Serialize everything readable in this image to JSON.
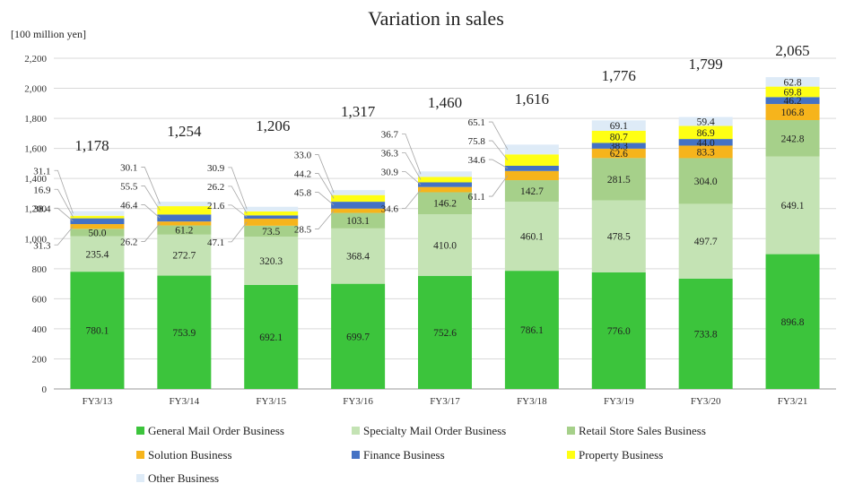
{
  "chart_data": {
    "type": "bar",
    "stacked": true,
    "title": "Variation in sales",
    "unit_label": "[100 million yen]",
    "ylim": [
      0,
      2200
    ],
    "yticks": [
      "0",
      "200",
      "400",
      "600",
      "800",
      "1,000",
      "1,200",
      "1,400",
      "1,600",
      "1,800",
      "2,000",
      "2,200"
    ],
    "grid": true,
    "legend_position": "bottom",
    "categories": [
      "FY3/13",
      "FY3/14",
      "FY3/15",
      "FY3/16",
      "FY3/17",
      "FY3/18",
      "FY3/19",
      "FY3/20",
      "FY3/21"
    ],
    "totals": [
      "1,178",
      "1,254",
      "1,206",
      "1,317",
      "1,460",
      "1,616",
      "1,776",
      "1,799",
      "2,065"
    ],
    "series": [
      {
        "name": "General Mail Order Business",
        "color": "#3cc43c",
        "values": [
          780.1,
          753.9,
          692.1,
          699.7,
          752.6,
          786.1,
          776.0,
          733.8,
          896.8
        ],
        "labels": [
          "780.1",
          "753.9",
          "692.1",
          "699.7",
          "752.6",
          "786.1",
          "776.0",
          "733.8",
          "896.8"
        ]
      },
      {
        "name": "Specialty Mail Order Business",
        "color": "#c4e3b4",
        "values": [
          235.4,
          272.7,
          320.3,
          368.4,
          410.0,
          460.1,
          478.5,
          497.7,
          649.1
        ],
        "labels": [
          "235.4",
          "272.7",
          "320.3",
          "368.4",
          "410.0",
          "460.1",
          "478.5",
          "497.7",
          "649.1"
        ]
      },
      {
        "name": "Retail Store Sales Business",
        "color": "#a6d08a",
        "values": [
          50.0,
          61.2,
          73.5,
          103.1,
          146.2,
          142.7,
          281.5,
          304.0,
          242.8
        ],
        "labels": [
          "50.0",
          "61.2",
          "73.5",
          "103.1",
          "146.2",
          "142.7",
          "281.5",
          "304.0",
          "242.8"
        ]
      },
      {
        "name": "Solution Business",
        "color": "#f6b41c",
        "values": [
          31.3,
          26.2,
          47.1,
          28.5,
          34.6,
          61.1,
          62.6,
          83.3,
          106.8
        ],
        "labels": [
          "31.3",
          "26.2",
          "47.1",
          "28.5",
          "34.6",
          "61.1",
          "62.6",
          "83.3",
          "106.8"
        ]
      },
      {
        "name": "Finance Business",
        "color": "#4472c4",
        "values": [
          38.4,
          46.4,
          21.6,
          45.8,
          30.9,
          34.6,
          38.3,
          44.0,
          46.2
        ],
        "labels": [
          "38.4",
          "46.4",
          "21.6",
          "45.8",
          "30.9",
          "34.6",
          "38.3",
          "44.0",
          "46.2"
        ]
      },
      {
        "name": "Property Business",
        "color": "#ffff14",
        "values": [
          16.9,
          55.5,
          26.2,
          44.2,
          36.3,
          75.8,
          80.7,
          86.9,
          69.8
        ],
        "labels": [
          "16.9",
          "55.5",
          "26.2",
          "44.2",
          "36.3",
          "75.8",
          "80.7",
          "86.9",
          "69.8"
        ]
      },
      {
        "name": "Other Business",
        "color": "#deebf7",
        "values": [
          31.1,
          30.1,
          30.9,
          33.0,
          36.7,
          65.1,
          69.1,
          59.4,
          62.8
        ],
        "labels": [
          "31.1",
          "30.1",
          "30.9",
          "33.0",
          "36.7",
          "65.1",
          "69.1",
          "59.4",
          "62.8"
        ]
      }
    ]
  }
}
